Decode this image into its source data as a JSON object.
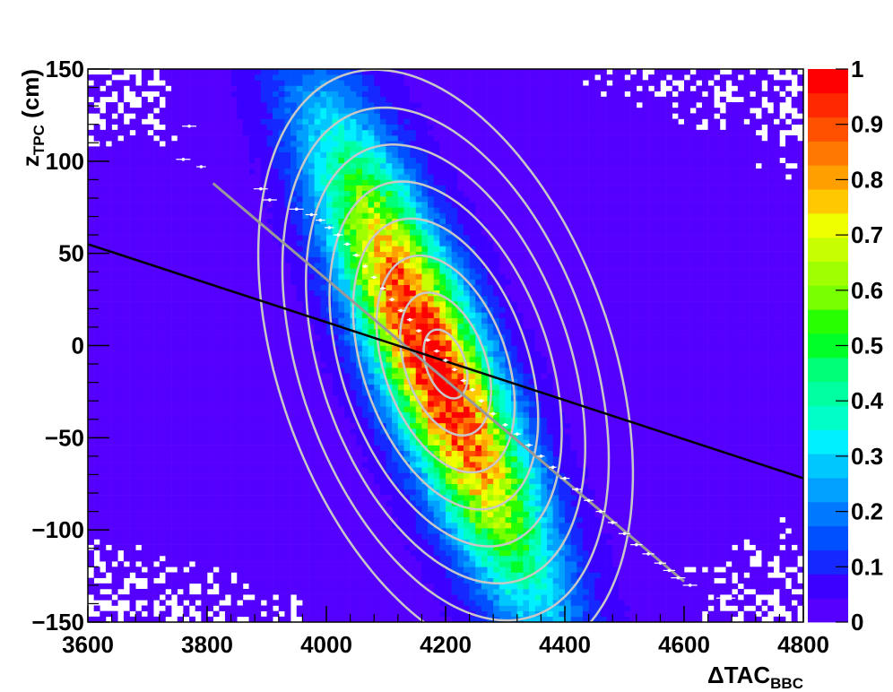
{
  "chart_data": {
    "type": "heatmap",
    "xlabel": {
      "main": "ΔTAC",
      "sub": "BBC"
    },
    "ylabel": {
      "main": "z",
      "sub": "TPC",
      "unit": " (cm)"
    },
    "xlim": [
      3600,
      4800
    ],
    "ylim": [
      -150,
      150
    ],
    "x_ticks": [
      3600,
      3800,
      4000,
      4200,
      4400,
      4600,
      4800
    ],
    "x_tick_labels": [
      "3600",
      "3800",
      "4000",
      "4200",
      "4400",
      "4600",
      "4800"
    ],
    "y_ticks": [
      -150,
      -100,
      -50,
      0,
      50,
      100,
      150
    ],
    "y_tick_labels": [
      "−150",
      "−100",
      "−50",
      "0",
      "50",
      "100",
      "150"
    ],
    "z_range": [
      0,
      1
    ],
    "z_ticks": [
      0,
      0.1,
      0.2,
      0.3,
      0.4,
      0.5,
      0.6,
      0.7,
      0.8,
      0.9,
      1
    ],
    "z_tick_labels": [
      "0",
      "0.1",
      "0.2",
      "0.3",
      "0.4",
      "0.5",
      "0.6",
      "0.7",
      "0.8",
      "0.9",
      "1"
    ],
    "palette": [
      "#5500ff",
      "#3b00ff",
      "#1428ff",
      "#0050ff",
      "#0078ff",
      "#00a0ff",
      "#00c8ff",
      "#00f0ff",
      "#00ffc8",
      "#00ffa0",
      "#00ff78",
      "#00ff28",
      "#28ff00",
      "#78ff00",
      "#a0ff00",
      "#c8ff00",
      "#f0ff00",
      "#ffc800",
      "#ffa000",
      "#ff7800",
      "#ff5000",
      "#ff2800",
      "#ff0000"
    ],
    "density_model": {
      "center": [
        4180,
        -10
      ],
      "sigma_x": 120,
      "sigma_y": 42,
      "slope": -0.58
    },
    "gaussian_fit_contours": {
      "center": [
        4200,
        -10
      ],
      "semi_major": [
        40,
        83,
        126,
        169,
        212,
        255,
        298,
        342
      ],
      "axis_ratio": 0.56,
      "tilt_slope": -0.45,
      "color": "#c8c8c8"
    },
    "linear_fit_black": {
      "x": [
        3600,
        4800
      ],
      "y": [
        55,
        -72
      ],
      "color": "#000000"
    },
    "linear_fit_grey": {
      "x": [
        3810,
        4600
      ],
      "y": [
        88,
        -128
      ],
      "color": "#999999"
    },
    "profile_points": [
      {
        "x": 3770,
        "y": 119,
        "xerr": 12
      },
      {
        "x": 3760,
        "y": 101,
        "xerr": 12
      },
      {
        "x": 3790,
        "y": 97,
        "xerr": 8
      },
      {
        "x": 3890,
        "y": 85,
        "xerr": 12
      },
      {
        "x": 3905,
        "y": 79,
        "xerr": 12
      },
      {
        "x": 3950,
        "y": 74,
        "xerr": 12
      },
      {
        "x": 3975,
        "y": 71,
        "xerr": 10
      },
      {
        "x": 3990,
        "y": 68,
        "xerr": 8
      },
      {
        "x": 4005,
        "y": 64,
        "xerr": 8
      },
      {
        "x": 4020,
        "y": 60,
        "xerr": 8
      },
      {
        "x": 4035,
        "y": 55,
        "xerr": 6
      },
      {
        "x": 4050,
        "y": 49,
        "xerr": 6
      },
      {
        "x": 4065,
        "y": 43,
        "xerr": 5
      },
      {
        "x": 4080,
        "y": 37,
        "xerr": 5
      },
      {
        "x": 4095,
        "y": 31,
        "xerr": 5
      },
      {
        "x": 4110,
        "y": 25,
        "xerr": 5
      },
      {
        "x": 4125,
        "y": 19,
        "xerr": 5
      },
      {
        "x": 4140,
        "y": 14,
        "xerr": 5
      },
      {
        "x": 4155,
        "y": 8,
        "xerr": 5
      },
      {
        "x": 4170,
        "y": 3,
        "xerr": 5
      },
      {
        "x": 4185,
        "y": -3,
        "xerr": 5
      },
      {
        "x": 4200,
        "y": -8,
        "xerr": 5
      },
      {
        "x": 4215,
        "y": -13,
        "xerr": 5
      },
      {
        "x": 4230,
        "y": -19,
        "xerr": 5
      },
      {
        "x": 4245,
        "y": -24,
        "xerr": 5
      },
      {
        "x": 4260,
        "y": -30,
        "xerr": 5
      },
      {
        "x": 4280,
        "y": -37,
        "xerr": 5
      },
      {
        "x": 4300,
        "y": -43,
        "xerr": 5
      },
      {
        "x": 4320,
        "y": -48,
        "xerr": 6
      },
      {
        "x": 4340,
        "y": -54,
        "xerr": 6
      },
      {
        "x": 4360,
        "y": -60,
        "xerr": 6
      },
      {
        "x": 4380,
        "y": -66,
        "xerr": 6
      },
      {
        "x": 4400,
        "y": -72,
        "xerr": 8
      },
      {
        "x": 4420,
        "y": -78,
        "xerr": 8
      },
      {
        "x": 4440,
        "y": -84,
        "xerr": 8
      },
      {
        "x": 4460,
        "y": -90,
        "xerr": 8
      },
      {
        "x": 4480,
        "y": -96,
        "xerr": 8
      },
      {
        "x": 4500,
        "y": -102,
        "xerr": 10
      },
      {
        "x": 4520,
        "y": -108,
        "xerr": 10
      },
      {
        "x": 4540,
        "y": -113,
        "xerr": 10
      },
      {
        "x": 4560,
        "y": -118,
        "xerr": 10
      },
      {
        "x": 4575,
        "y": -122,
        "xerr": 10
      },
      {
        "x": 4590,
        "y": -126,
        "xerr": 12
      },
      {
        "x": 4610,
        "y": -130,
        "xerr": 12
      },
      {
        "x": 4670,
        "y": -137,
        "xerr": 16
      }
    ]
  }
}
